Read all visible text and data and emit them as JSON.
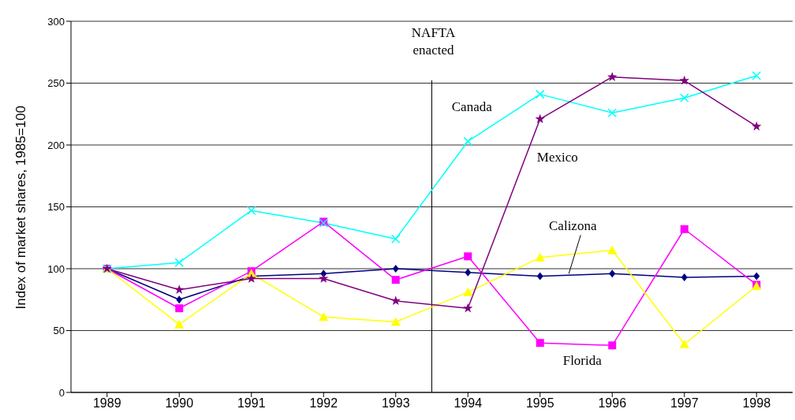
{
  "chart_data": {
    "type": "line",
    "ylabel": "Index of market shares, 1985=100",
    "x": [
      1989,
      1990,
      1991,
      1992,
      1993,
      1994,
      1995,
      1996,
      1997,
      1998
    ],
    "xlim": [
      1988.5,
      1998.5
    ],
    "xticks": [
      1989,
      1990,
      1991,
      1992,
      1993,
      1994,
      1995,
      1996,
      1997,
      1998
    ],
    "ylim": [
      0,
      300
    ],
    "yticks": [
      0,
      50,
      100,
      150,
      200,
      250,
      300
    ],
    "grid": "y",
    "legend": false,
    "ref_lines": [
      {
        "axis": "x",
        "value": 1993.5,
        "label": "NAFTA enacted",
        "color": "#000000"
      }
    ],
    "series": [
      {
        "name": "Calizona",
        "color": "#000080",
        "marker": "diamond",
        "values": [
          100,
          75,
          94,
          96,
          100,
          97,
          94,
          96,
          93,
          94
        ]
      },
      {
        "name": "Florida",
        "color": "#ff00ff",
        "marker": "square",
        "values": [
          100,
          68,
          98,
          138,
          91,
          110,
          40,
          38,
          132,
          87
        ]
      },
      {
        "color": "#ffff00",
        "marker": "triangle",
        "values": [
          100,
          55,
          96,
          61,
          57,
          81,
          109,
          115,
          39,
          86
        ]
      },
      {
        "name": "Canada",
        "color": "#00ffff",
        "marker": "cross",
        "values": [
          100,
          105,
          147,
          137,
          124,
          203,
          241,
          226,
          238,
          256
        ]
      },
      {
        "name": "Mexico",
        "color": "#800080",
        "marker": "star",
        "values": [
          100,
          83,
          92,
          92,
          74,
          68,
          221,
          255,
          252,
          215
        ]
      }
    ]
  }
}
